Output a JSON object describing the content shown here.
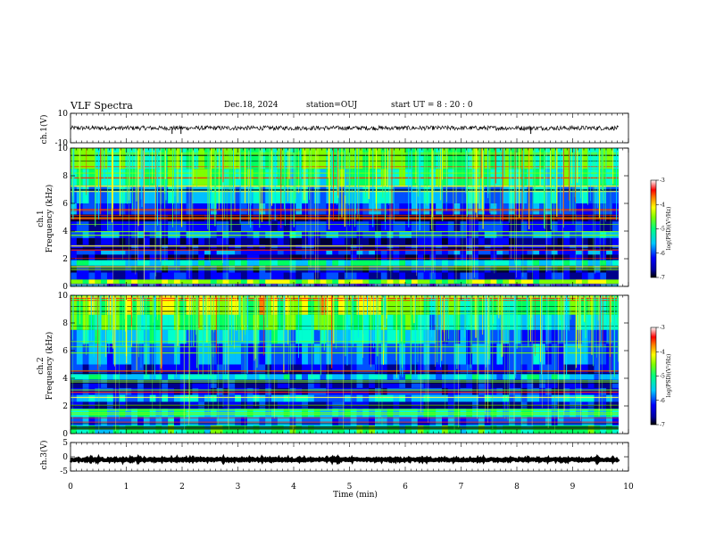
{
  "header": {
    "title": "VLF Spectra",
    "date": "Dec.18, 2024",
    "station": "station=OUJ",
    "start_ut": "start  UT =  8 : 20 : 0"
  },
  "chart_data": [
    {
      "type": "line",
      "panel": "ch1-waveform",
      "ylabel": "ch.1(V)",
      "ylim": [
        -10,
        10
      ],
      "yticks": [
        "10",
        "-10"
      ],
      "xlim": [
        0,
        10
      ],
      "baseline": 0,
      "amplitude_approx": 1.5
    },
    {
      "type": "heatmap",
      "panel": "ch1-spectrogram",
      "ylabel_top": "ch.1",
      "ylabel": "Frequency  (kHz)",
      "ylim": [
        0,
        10
      ],
      "yticks": [
        "0",
        "2",
        "4",
        "6",
        "8",
        "10"
      ],
      "xlim": [
        0,
        10
      ],
      "data_end_min": 9.82,
      "colorbar": {
        "label": "log(PSD)(V²/Hz)",
        "range": [
          -7,
          -3
        ],
        "ticks": [
          "-3",
          "-4",
          "-5",
          "-6",
          "-7"
        ]
      }
    },
    {
      "type": "heatmap",
      "panel": "ch2-spectrogram",
      "ylabel_top": "ch.2",
      "ylabel": "Frequency  (kHz)",
      "ylim": [
        0,
        10
      ],
      "yticks": [
        "0",
        "2",
        "4",
        "6",
        "8",
        "10"
      ],
      "xlim": [
        0,
        10
      ],
      "data_end_min": 9.82,
      "colorbar": {
        "label": "log(PSD)(V²/Hz)",
        "range": [
          -7,
          -3
        ],
        "ticks": [
          "-3",
          "-4",
          "-5",
          "-6",
          "-7"
        ]
      }
    },
    {
      "type": "line",
      "panel": "ch3-waveform",
      "ylabel": "ch.3(V)",
      "ylim": [
        -5,
        5
      ],
      "yticks": [
        "5",
        "0",
        "-5"
      ],
      "xlim": [
        0,
        10
      ],
      "baseline": -1.0,
      "amplitude_approx": 0.3
    }
  ],
  "x_axis": {
    "label": "Time  (min)",
    "ticks": [
      "0",
      "1",
      "2",
      "3",
      "4",
      "5",
      "6",
      "7",
      "8",
      "9",
      "10"
    ]
  },
  "colors": {
    "colormap": [
      "#00007f",
      "#0000ff",
      "#00bfff",
      "#00ffb0",
      "#7fff00",
      "#ffff00",
      "#ff7f00",
      "#ff0000",
      "#ffffff"
    ]
  }
}
